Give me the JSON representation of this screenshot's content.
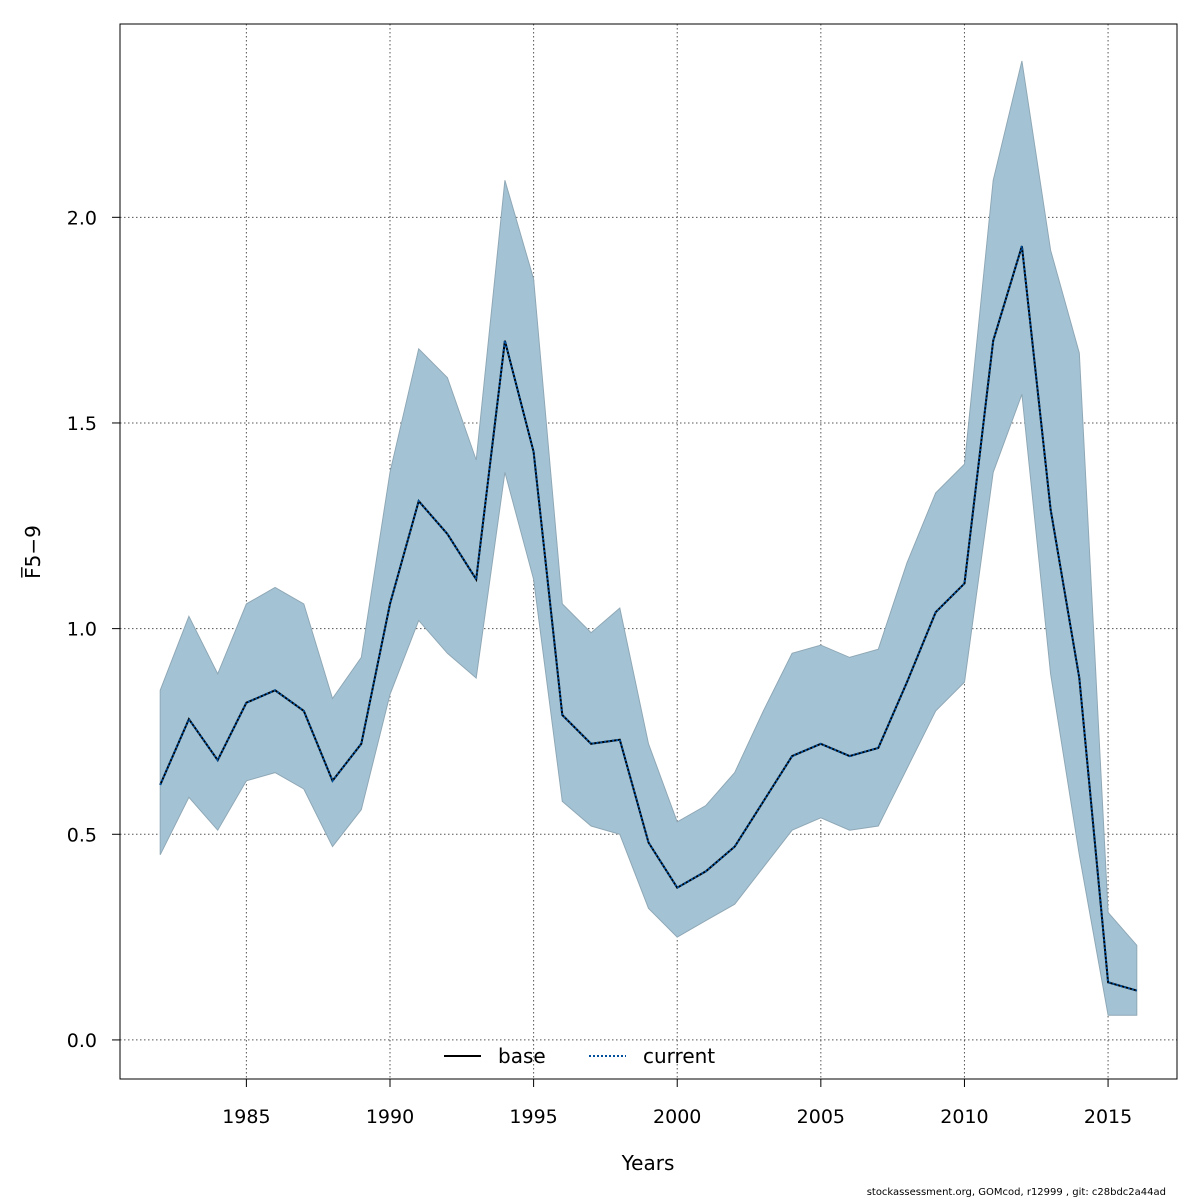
{
  "chart_data": {
    "type": "line",
    "title": "",
    "xlabel": "Years",
    "ylabel": "F̅5−9",
    "xlim": [
      1980.6,
      2017.4
    ],
    "ylim": [
      -0.095,
      2.47
    ],
    "xticks": [
      1985,
      1990,
      1995,
      2000,
      2005,
      2010,
      2015
    ],
    "yticks": [
      0.0,
      0.5,
      1.0,
      1.5,
      2.0
    ],
    "ytick_labels": [
      "0.0",
      "0.5",
      "1.0",
      "1.5",
      "2.0"
    ],
    "grid": true,
    "legend_position": "bottom-center",
    "x": [
      1982,
      1983,
      1984,
      1985,
      1986,
      1987,
      1988,
      1989,
      1990,
      1991,
      1992,
      1993,
      1994,
      1995,
      1996,
      1997,
      1998,
      1999,
      2000,
      2001,
      2002,
      2003,
      2004,
      2005,
      2006,
      2007,
      2008,
      2009,
      2010,
      2011,
      2012,
      2013,
      2014,
      2015,
      2016
    ],
    "series": [
      {
        "name": "base",
        "style": "solid",
        "color": "#000000",
        "values": [
          0.62,
          0.78,
          0.68,
          0.82,
          0.85,
          0.8,
          0.63,
          0.72,
          1.06,
          1.31,
          1.23,
          1.12,
          1.7,
          1.43,
          0.79,
          0.72,
          0.73,
          0.48,
          0.37,
          0.41,
          0.47,
          0.58,
          0.69,
          0.72,
          0.69,
          0.71,
          0.87,
          1.04,
          1.11,
          1.7,
          1.93,
          1.29,
          0.88,
          0.14,
          0.12
        ]
      },
      {
        "name": "current",
        "style": "dotted",
        "color": "#00509e",
        "values": [
          0.62,
          0.78,
          0.68,
          0.82,
          0.85,
          0.8,
          0.63,
          0.72,
          1.06,
          1.31,
          1.23,
          1.12,
          1.7,
          1.43,
          0.79,
          0.72,
          0.73,
          0.48,
          0.37,
          0.41,
          0.47,
          0.58,
          0.69,
          0.72,
          0.69,
          0.71,
          0.87,
          1.04,
          1.11,
          1.7,
          1.93,
          1.29,
          0.88,
          0.14,
          0.12
        ]
      }
    ],
    "band": {
      "color": "#a3c3d5",
      "upper": [
        0.85,
        1.03,
        0.89,
        1.06,
        1.1,
        1.06,
        0.83,
        0.93,
        1.38,
        1.68,
        1.61,
        1.41,
        2.09,
        1.85,
        1.06,
        0.99,
        1.05,
        0.72,
        0.53,
        0.57,
        0.65,
        0.8,
        0.94,
        0.96,
        0.93,
        0.95,
        1.16,
        1.33,
        1.4,
        2.09,
        2.38,
        1.92,
        1.67,
        0.31,
        0.23
      ],
      "lower": [
        0.45,
        0.59,
        0.51,
        0.63,
        0.65,
        0.61,
        0.47,
        0.56,
        0.84,
        1.02,
        0.94,
        0.88,
        1.38,
        1.12,
        0.58,
        0.52,
        0.5,
        0.32,
        0.25,
        0.29,
        0.33,
        0.42,
        0.51,
        0.54,
        0.51,
        0.52,
        0.66,
        0.8,
        0.87,
        1.38,
        1.57,
        0.89,
        0.45,
        0.06,
        0.06
      ]
    }
  },
  "footer": "stockassessment.org, GOMcod, r12999 , git: c28bdc2a44ad"
}
